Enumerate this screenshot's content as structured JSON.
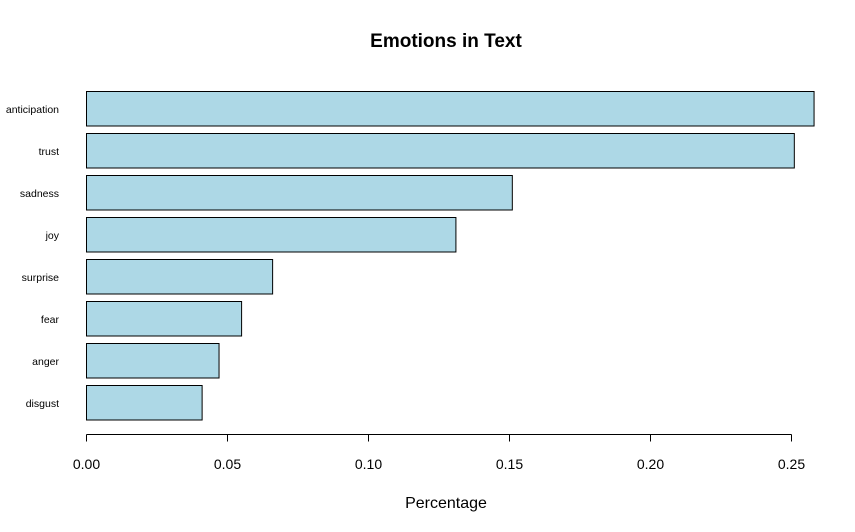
{
  "chart_data": {
    "type": "bar",
    "orientation": "horizontal",
    "title": "Emotions in Text",
    "xlabel": "Percentage",
    "ylabel": "",
    "categories": [
      "anticipation",
      "trust",
      "sadness",
      "joy",
      "surprise",
      "fear",
      "anger",
      "disgust"
    ],
    "values": [
      0.258,
      0.251,
      0.151,
      0.131,
      0.066,
      0.055,
      0.047,
      0.041
    ],
    "xlim": [
      0,
      0.26
    ],
    "xticks": [
      "0.00",
      "0.05",
      "0.10",
      "0.15",
      "0.20",
      "0.25"
    ],
    "bar_color": "#ADD8E6",
    "grid": false,
    "legend": "none"
  }
}
